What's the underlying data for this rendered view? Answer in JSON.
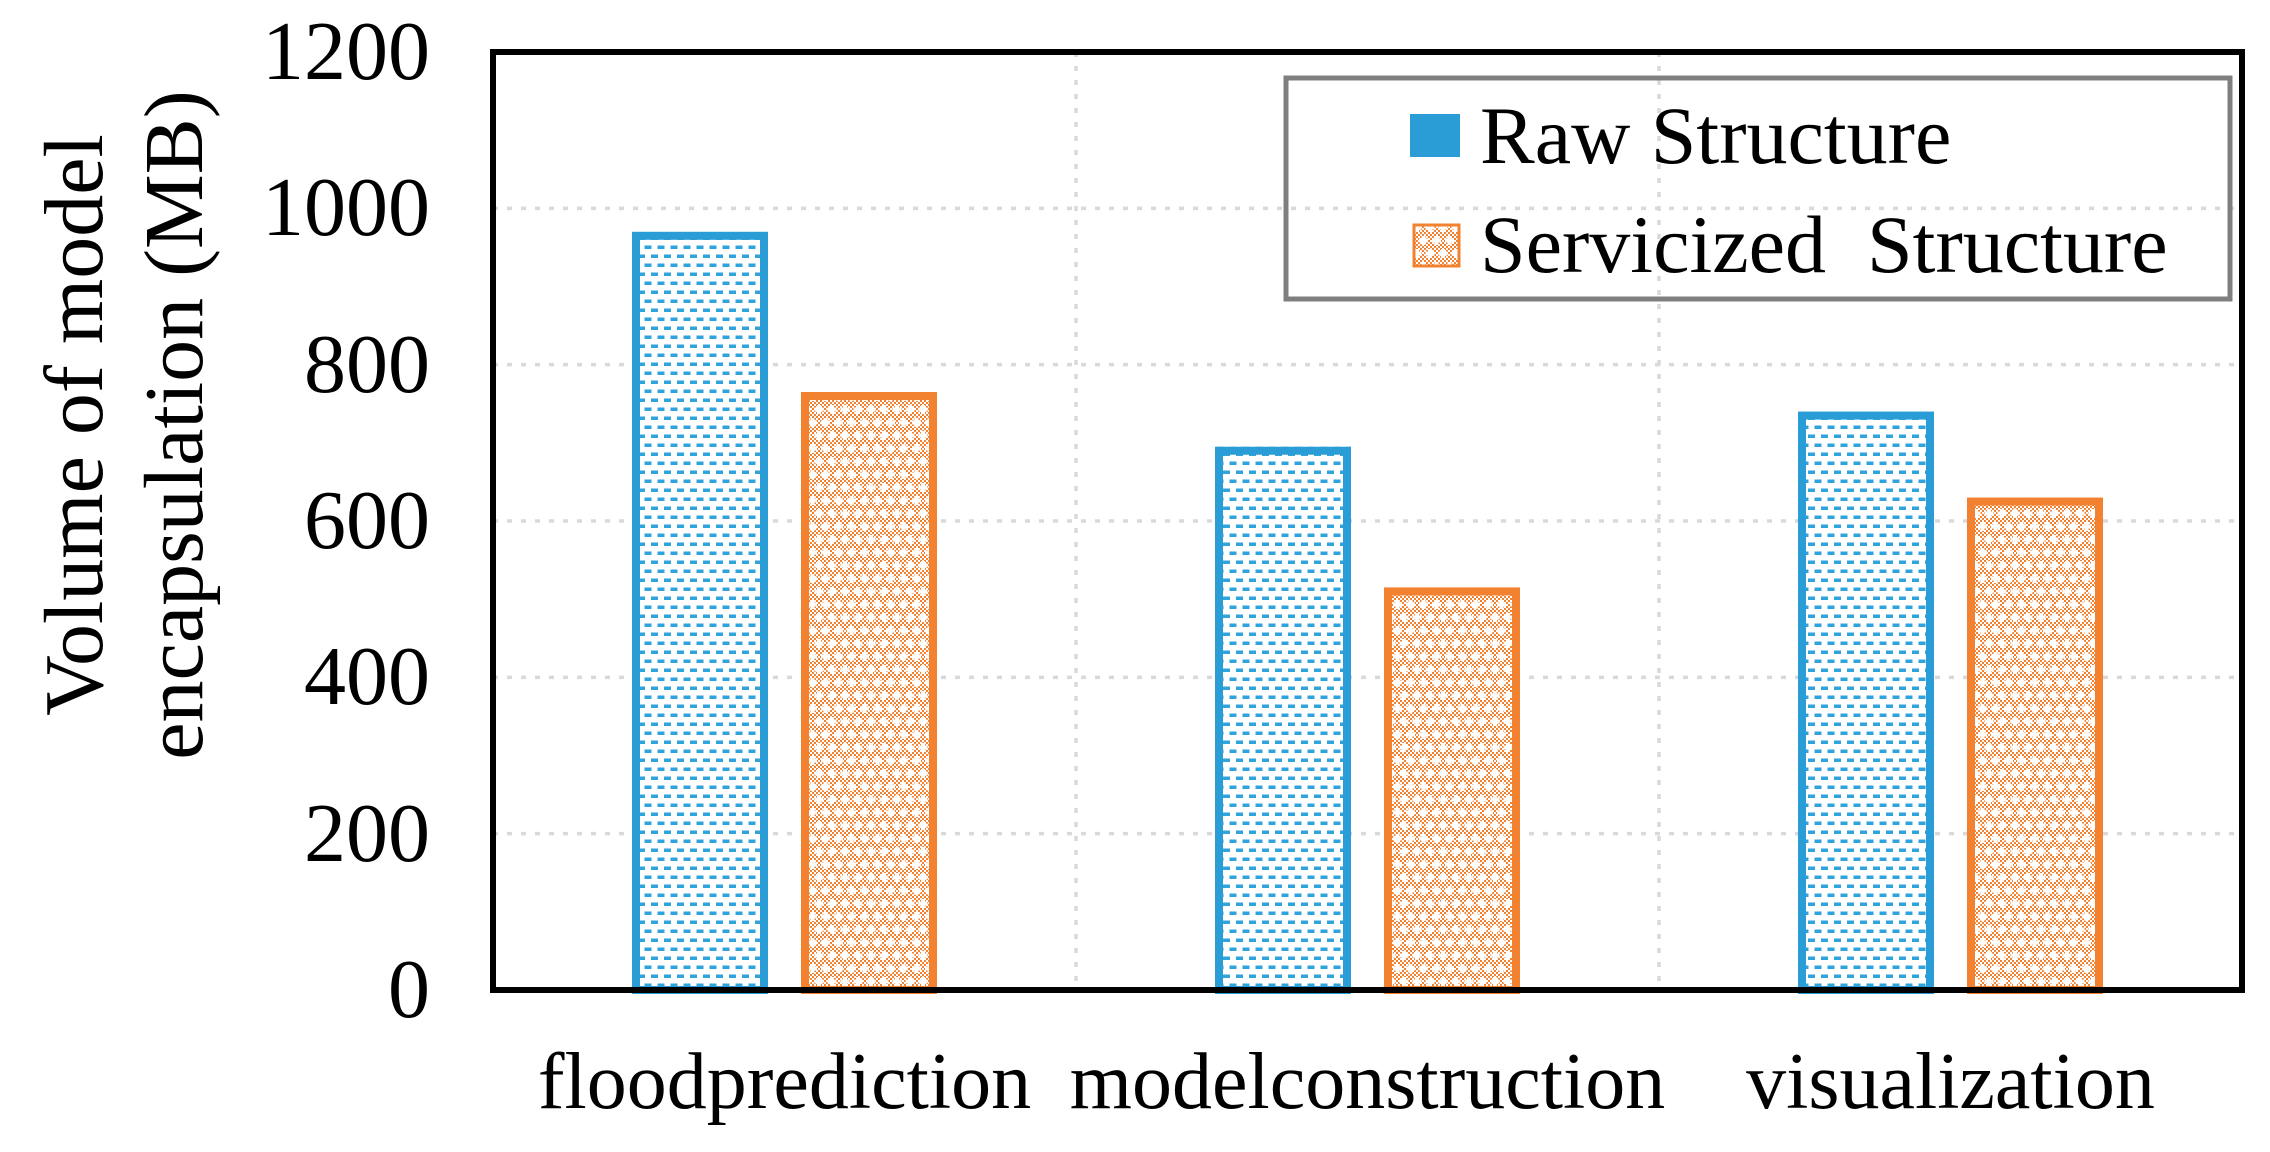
{
  "chart_data": {
    "type": "bar",
    "title": "",
    "categories": [
      "floodprediction",
      "modelconstruction",
      "visualization"
    ],
    "series": [
      {
        "name": "Raw Structure",
        "values": [
          970,
          695,
          740
        ],
        "color": "#2B9DD6",
        "pattern": "horizontal-dashes"
      },
      {
        "name": "Servicized  Structure",
        "values": [
          765,
          515,
          630
        ],
        "color": "#F28130",
        "pattern": "checker-with-white-crosses"
      }
    ],
    "xlabel": "",
    "ylabel_lines": [
      "Volume of model",
      "encapsulation (MB)"
    ],
    "yticks": [
      0,
      200,
      400,
      600,
      800,
      1000,
      1200
    ],
    "ylim": [
      0,
      1200
    ],
    "grid": {
      "horizontal": "dashed-light-gray",
      "vertical": "dashed-at-category-boundaries",
      "gridline_color": "#D9D9D9"
    },
    "legend_position": "top-right-inside",
    "legend_border_color": "#7F7F7F",
    "axis_border_color": "#000000"
  }
}
